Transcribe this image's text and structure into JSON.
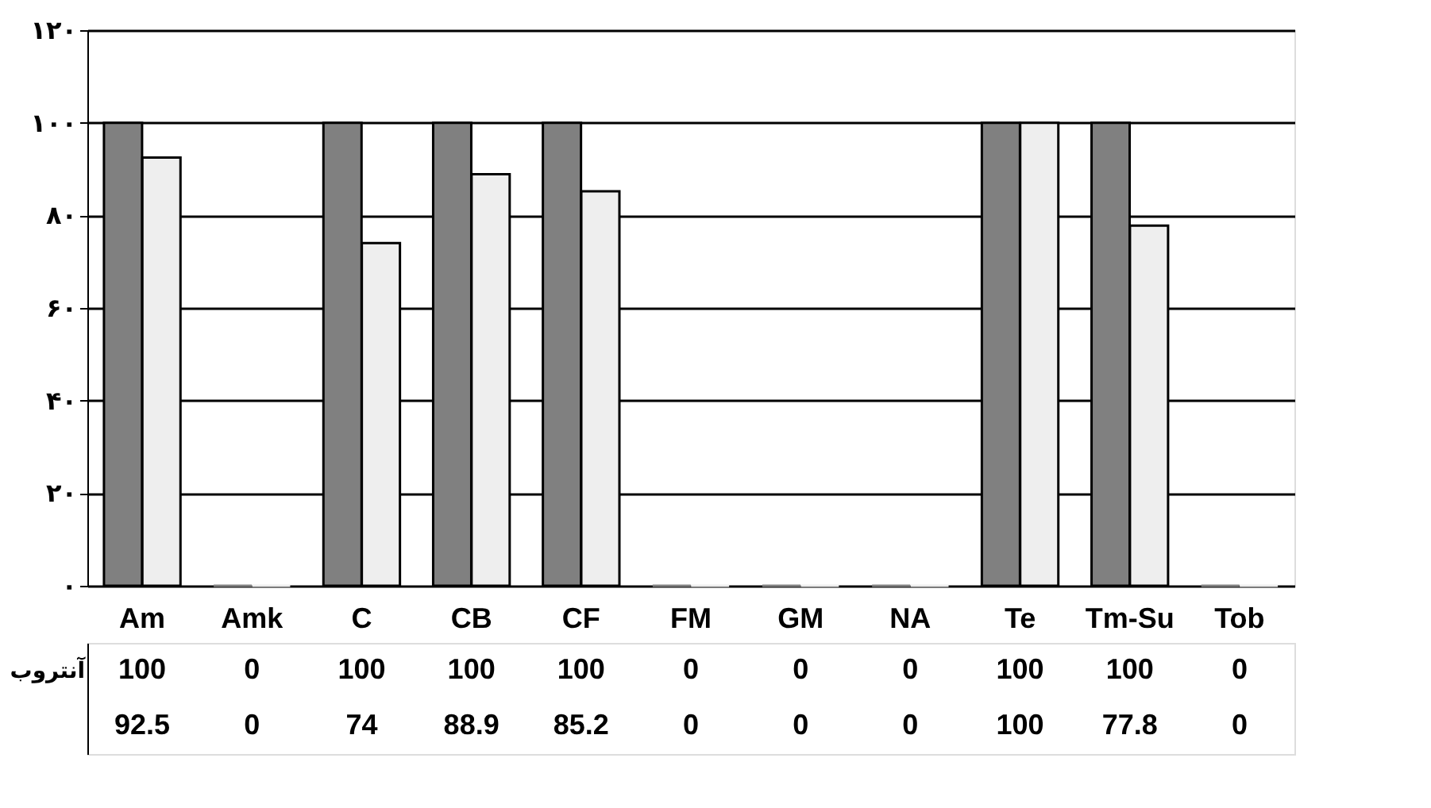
{
  "chart_data": {
    "type": "bar",
    "categories": [
      "Am",
      "Amk",
      "C",
      "CB",
      "CF",
      "FM",
      "GM",
      "NA",
      "Te",
      "Tm-Su",
      "Tob"
    ],
    "series": [
      {
        "name": "آنتروب",
        "color": "#808080",
        "values": [
          100,
          0,
          100,
          100,
          100,
          0,
          0,
          0,
          100,
          100,
          0
        ]
      },
      {
        "color": "#eeeeee",
        "values": [
          92.5,
          0,
          74,
          88.9,
          85.2,
          0,
          0,
          0,
          100,
          77.8,
          0
        ]
      }
    ],
    "ylim": [
      0,
      120
    ],
    "yticks": [
      {
        "value": 0,
        "label": "۰"
      },
      {
        "value": 20,
        "label": "۲۰"
      },
      {
        "value": 40,
        "label": "۴۰"
      },
      {
        "value": 60,
        "label": "۶۰"
      },
      {
        "value": 80,
        "label": "۸۰"
      },
      {
        "value": 100,
        "label": "۱۰۰"
      },
      {
        "value": 120,
        "label": "۱۲۰"
      }
    ],
    "grid": "y",
    "data_labels": true,
    "legend": false
  }
}
